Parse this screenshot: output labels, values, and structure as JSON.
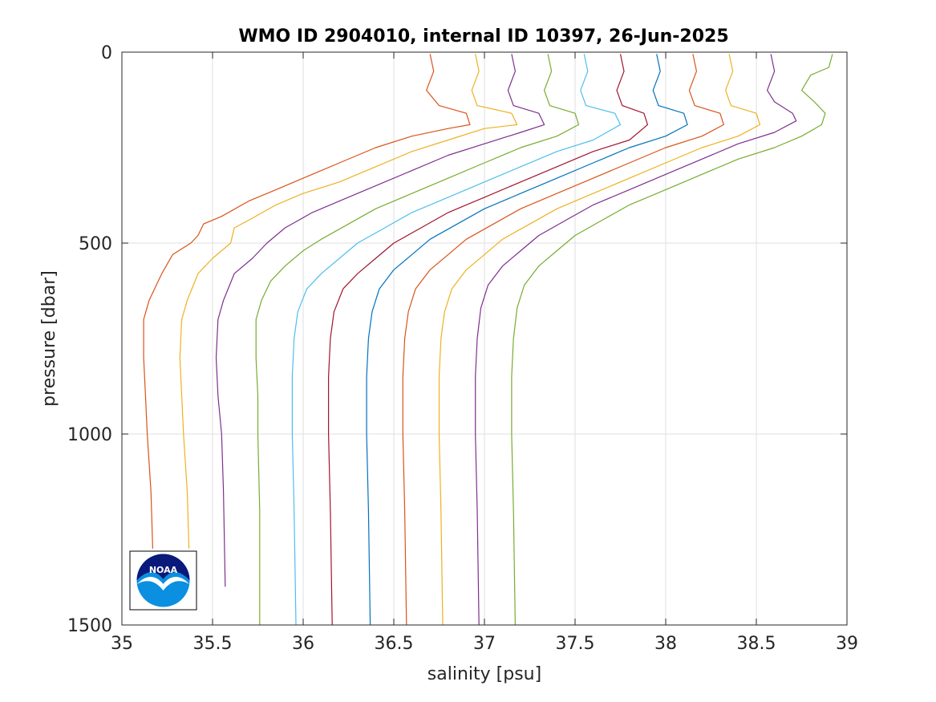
{
  "chart_data": {
    "type": "line",
    "title": "WMO ID 2904010, internal ID 10397, 26-Jun-2025",
    "xlabel": "salinity [psu]",
    "ylabel": "pressure [dbar]",
    "xlim": [
      35,
      39
    ],
    "ylim": [
      0,
      1500
    ],
    "y_reversed": true,
    "grid": true,
    "x_ticks": [
      "35",
      "35.5",
      "36",
      "36.5",
      "37",
      "37.5",
      "38",
      "38.5",
      "39"
    ],
    "y_ticks": [
      "0",
      "500",
      "1000",
      "1500"
    ],
    "logo": "noaa-logo",
    "series": [
      {
        "color": "#D95319",
        "points": [
          [
            36.7,
            5
          ],
          [
            36.72,
            50
          ],
          [
            36.68,
            100
          ],
          [
            36.75,
            140
          ],
          [
            36.9,
            160
          ],
          [
            36.92,
            190
          ],
          [
            36.8,
            200
          ],
          [
            36.6,
            220
          ],
          [
            36.4,
            250
          ],
          [
            36.2,
            290
          ],
          [
            36.0,
            330
          ],
          [
            35.85,
            360
          ],
          [
            35.7,
            390
          ],
          [
            35.55,
            430
          ],
          [
            35.45,
            450
          ],
          [
            35.42,
            480
          ],
          [
            35.38,
            500
          ],
          [
            35.28,
            530
          ],
          [
            35.22,
            580
          ],
          [
            35.15,
            650
          ],
          [
            35.12,
            700
          ],
          [
            35.12,
            800
          ],
          [
            35.13,
            900
          ],
          [
            35.14,
            1000
          ],
          [
            35.16,
            1150
          ],
          [
            35.17,
            1300
          ]
        ]
      },
      {
        "color": "#EDB120",
        "points": [
          [
            36.95,
            5
          ],
          [
            36.97,
            50
          ],
          [
            36.93,
            100
          ],
          [
            36.96,
            140
          ],
          [
            37.15,
            160
          ],
          [
            37.18,
            190
          ],
          [
            37.0,
            200
          ],
          [
            36.8,
            230
          ],
          [
            36.6,
            260
          ],
          [
            36.4,
            300
          ],
          [
            36.2,
            340
          ],
          [
            36.0,
            370
          ],
          [
            35.85,
            400
          ],
          [
            35.7,
            440
          ],
          [
            35.62,
            460
          ],
          [
            35.6,
            500
          ],
          [
            35.5,
            540
          ],
          [
            35.42,
            580
          ],
          [
            35.36,
            650
          ],
          [
            35.33,
            700
          ],
          [
            35.32,
            800
          ],
          [
            35.33,
            900
          ],
          [
            35.34,
            1000
          ],
          [
            35.36,
            1150
          ],
          [
            35.37,
            1300
          ]
        ]
      },
      {
        "color": "#7E2F8E",
        "points": [
          [
            37.15,
            5
          ],
          [
            37.17,
            50
          ],
          [
            37.13,
            100
          ],
          [
            37.16,
            140
          ],
          [
            37.3,
            160
          ],
          [
            37.33,
            190
          ],
          [
            37.2,
            210
          ],
          [
            37.0,
            240
          ],
          [
            36.8,
            270
          ],
          [
            36.6,
            310
          ],
          [
            36.4,
            350
          ],
          [
            36.2,
            390
          ],
          [
            36.05,
            420
          ],
          [
            35.9,
            460
          ],
          [
            35.8,
            500
          ],
          [
            35.72,
            540
          ],
          [
            35.62,
            580
          ],
          [
            35.56,
            650
          ],
          [
            35.53,
            700
          ],
          [
            35.52,
            800
          ],
          [
            35.53,
            900
          ],
          [
            35.55,
            1000
          ],
          [
            35.56,
            1150
          ],
          [
            35.57,
            1400
          ]
        ]
      },
      {
        "color": "#77AC30",
        "points": [
          [
            37.35,
            5
          ],
          [
            37.37,
            50
          ],
          [
            37.33,
            100
          ],
          [
            37.36,
            140
          ],
          [
            37.5,
            160
          ],
          [
            37.52,
            190
          ],
          [
            37.4,
            220
          ],
          [
            37.2,
            250
          ],
          [
            37.0,
            290
          ],
          [
            36.8,
            330
          ],
          [
            36.6,
            370
          ],
          [
            36.4,
            410
          ],
          [
            36.25,
            450
          ],
          [
            36.1,
            490
          ],
          [
            36.0,
            520
          ],
          [
            35.9,
            560
          ],
          [
            35.82,
            600
          ],
          [
            35.77,
            650
          ],
          [
            35.74,
            700
          ],
          [
            35.74,
            800
          ],
          [
            35.75,
            900
          ],
          [
            35.75,
            1000
          ],
          [
            35.76,
            1200
          ],
          [
            35.76,
            1500
          ]
        ]
      },
      {
        "color": "#4DBEEE",
        "points": [
          [
            37.55,
            5
          ],
          [
            37.57,
            50
          ],
          [
            37.53,
            100
          ],
          [
            37.56,
            140
          ],
          [
            37.72,
            160
          ],
          [
            37.75,
            190
          ],
          [
            37.6,
            230
          ],
          [
            37.4,
            260
          ],
          [
            37.2,
            300
          ],
          [
            37.0,
            340
          ],
          [
            36.8,
            380
          ],
          [
            36.6,
            420
          ],
          [
            36.45,
            460
          ],
          [
            36.3,
            500
          ],
          [
            36.2,
            540
          ],
          [
            36.1,
            580
          ],
          [
            36.02,
            620
          ],
          [
            35.97,
            680
          ],
          [
            35.95,
            750
          ],
          [
            35.94,
            850
          ],
          [
            35.94,
            1000
          ],
          [
            35.95,
            1200
          ],
          [
            35.96,
            1500
          ]
        ]
      },
      {
        "color": "#A2142F",
        "points": [
          [
            37.75,
            5
          ],
          [
            37.77,
            50
          ],
          [
            37.73,
            100
          ],
          [
            37.76,
            140
          ],
          [
            37.88,
            160
          ],
          [
            37.9,
            190
          ],
          [
            37.8,
            230
          ],
          [
            37.6,
            260
          ],
          [
            37.4,
            300
          ],
          [
            37.2,
            340
          ],
          [
            37.0,
            380
          ],
          [
            36.8,
            420
          ],
          [
            36.65,
            460
          ],
          [
            36.5,
            500
          ],
          [
            36.4,
            540
          ],
          [
            36.3,
            580
          ],
          [
            36.22,
            620
          ],
          [
            36.17,
            680
          ],
          [
            36.15,
            750
          ],
          [
            36.14,
            850
          ],
          [
            36.14,
            1000
          ],
          [
            36.15,
            1200
          ],
          [
            36.16,
            1500
          ]
        ]
      },
      {
        "color": "#0072BD",
        "points": [
          [
            37.95,
            5
          ],
          [
            37.97,
            50
          ],
          [
            37.93,
            100
          ],
          [
            37.96,
            140
          ],
          [
            38.1,
            160
          ],
          [
            38.12,
            190
          ],
          [
            38.0,
            220
          ],
          [
            37.8,
            250
          ],
          [
            37.6,
            290
          ],
          [
            37.4,
            330
          ],
          [
            37.2,
            370
          ],
          [
            37.0,
            410
          ],
          [
            36.85,
            450
          ],
          [
            36.7,
            490
          ],
          [
            36.6,
            530
          ],
          [
            36.5,
            570
          ],
          [
            36.42,
            620
          ],
          [
            36.38,
            680
          ],
          [
            36.36,
            750
          ],
          [
            36.35,
            850
          ],
          [
            36.35,
            1000
          ],
          [
            36.36,
            1200
          ],
          [
            36.37,
            1500
          ]
        ]
      },
      {
        "color": "#D95319",
        "points": [
          [
            38.15,
            5
          ],
          [
            38.17,
            50
          ],
          [
            38.13,
            100
          ],
          [
            38.16,
            140
          ],
          [
            38.3,
            160
          ],
          [
            38.32,
            190
          ],
          [
            38.2,
            220
          ],
          [
            38.0,
            250
          ],
          [
            37.8,
            290
          ],
          [
            37.6,
            330
          ],
          [
            37.4,
            370
          ],
          [
            37.2,
            410
          ],
          [
            37.05,
            450
          ],
          [
            36.9,
            490
          ],
          [
            36.8,
            530
          ],
          [
            36.7,
            570
          ],
          [
            36.62,
            620
          ],
          [
            36.58,
            680
          ],
          [
            36.56,
            750
          ],
          [
            36.55,
            850
          ],
          [
            36.55,
            1000
          ],
          [
            36.56,
            1200
          ],
          [
            36.57,
            1500
          ]
        ]
      },
      {
        "color": "#EDB120",
        "points": [
          [
            38.35,
            5
          ],
          [
            38.37,
            50
          ],
          [
            38.33,
            100
          ],
          [
            38.36,
            140
          ],
          [
            38.5,
            160
          ],
          [
            38.52,
            190
          ],
          [
            38.4,
            220
          ],
          [
            38.2,
            250
          ],
          [
            38.0,
            290
          ],
          [
            37.8,
            330
          ],
          [
            37.6,
            370
          ],
          [
            37.4,
            410
          ],
          [
            37.25,
            450
          ],
          [
            37.1,
            490
          ],
          [
            37.0,
            530
          ],
          [
            36.9,
            570
          ],
          [
            36.82,
            620
          ],
          [
            36.78,
            680
          ],
          [
            36.76,
            750
          ],
          [
            36.75,
            850
          ],
          [
            36.75,
            1000
          ],
          [
            36.76,
            1200
          ],
          [
            36.77,
            1500
          ]
        ]
      },
      {
        "color": "#7E2F8E",
        "points": [
          [
            38.58,
            5
          ],
          [
            38.6,
            50
          ],
          [
            38.56,
            100
          ],
          [
            38.6,
            130
          ],
          [
            38.7,
            160
          ],
          [
            38.72,
            180
          ],
          [
            38.6,
            210
          ],
          [
            38.4,
            240
          ],
          [
            38.2,
            280
          ],
          [
            38.0,
            320
          ],
          [
            37.8,
            360
          ],
          [
            37.6,
            400
          ],
          [
            37.45,
            440
          ],
          [
            37.3,
            480
          ],
          [
            37.2,
            520
          ],
          [
            37.1,
            560
          ],
          [
            37.02,
            610
          ],
          [
            36.98,
            670
          ],
          [
            36.96,
            750
          ],
          [
            36.95,
            850
          ],
          [
            36.95,
            1000
          ],
          [
            36.96,
            1200
          ],
          [
            36.97,
            1500
          ]
        ]
      },
      {
        "color": "#77AC30",
        "points": [
          [
            38.92,
            5
          ],
          [
            38.9,
            40
          ],
          [
            38.8,
            60
          ],
          [
            38.75,
            100
          ],
          [
            38.82,
            130
          ],
          [
            38.88,
            160
          ],
          [
            38.86,
            190
          ],
          [
            38.75,
            220
          ],
          [
            38.6,
            250
          ],
          [
            38.4,
            280
          ],
          [
            38.2,
            320
          ],
          [
            38.0,
            360
          ],
          [
            37.8,
            400
          ],
          [
            37.65,
            440
          ],
          [
            37.5,
            480
          ],
          [
            37.4,
            520
          ],
          [
            37.3,
            560
          ],
          [
            37.22,
            610
          ],
          [
            37.18,
            670
          ],
          [
            37.16,
            750
          ],
          [
            37.15,
            850
          ],
          [
            37.15,
            1000
          ],
          [
            37.16,
            1200
          ],
          [
            37.17,
            1500
          ]
        ]
      }
    ]
  }
}
